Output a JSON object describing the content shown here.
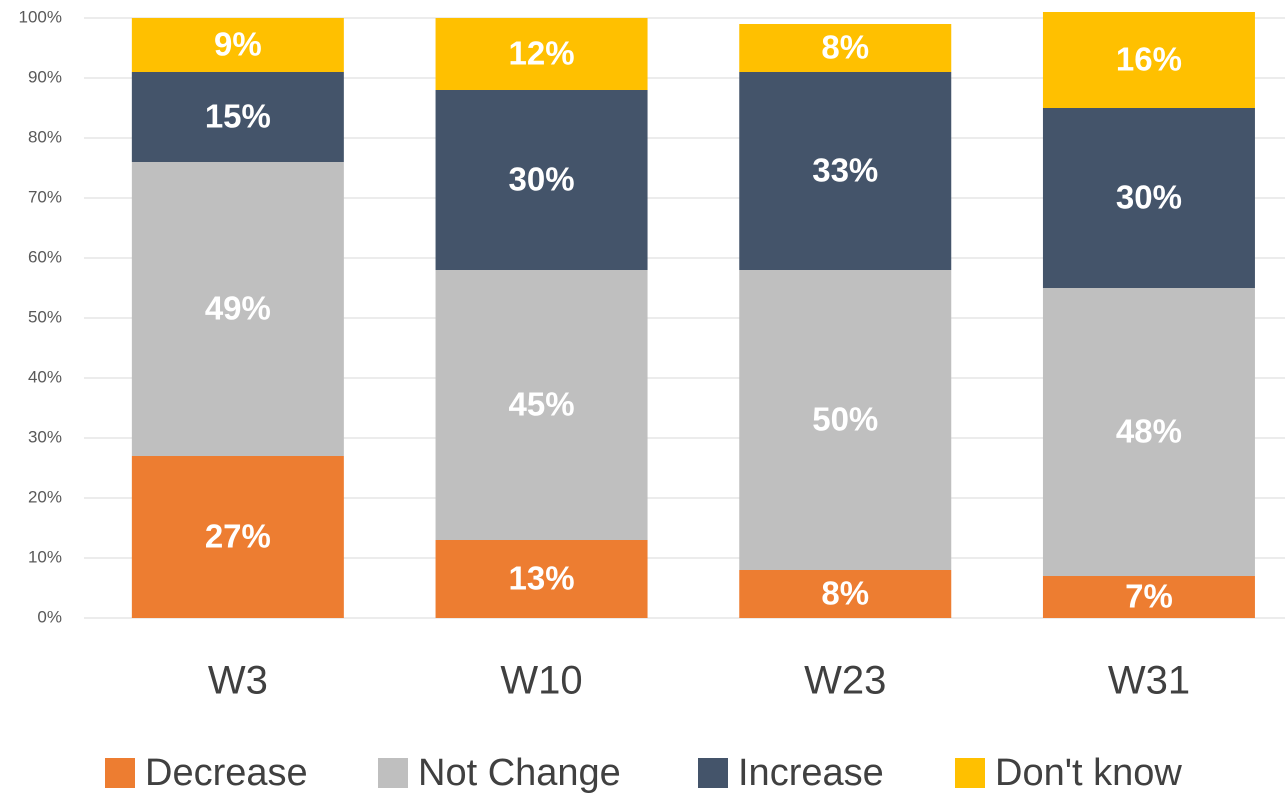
{
  "chart_data": {
    "type": "stacked_bar",
    "categories": [
      "W3",
      "W10",
      "W23",
      "W31"
    ],
    "series": [
      {
        "name": "Decrease",
        "color": "#ed7d31",
        "values": [
          27,
          13,
          8,
          7
        ],
        "value_labels": [
          "27%",
          "13%",
          "8%",
          "7%"
        ]
      },
      {
        "name": "Not Change",
        "color": "#bfbfbf",
        "values": [
          49,
          45,
          50,
          48
        ],
        "value_labels": [
          "49%",
          "45%",
          "50%",
          "48%"
        ]
      },
      {
        "name": "Increase",
        "color": "#44546a",
        "values": [
          15,
          30,
          33,
          30
        ],
        "value_labels": [
          "15%",
          "30%",
          "33%",
          "30%"
        ]
      },
      {
        "name": "Don't know",
        "color": "#ffc000",
        "values": [
          9,
          12,
          8,
          16
        ],
        "value_labels": [
          "9%",
          "12%",
          "8%",
          "16%"
        ]
      }
    ],
    "ylim": [
      0,
      100
    ],
    "yticks": [
      {
        "value": 0,
        "label": "0%"
      },
      {
        "value": 10,
        "label": "10%"
      },
      {
        "value": 20,
        "label": "20%"
      },
      {
        "value": 30,
        "label": "30%"
      },
      {
        "value": 40,
        "label": "40%"
      },
      {
        "value": 50,
        "label": "50%"
      },
      {
        "value": 60,
        "label": "60%"
      },
      {
        "value": 70,
        "label": "70%"
      },
      {
        "value": 80,
        "label": "80%"
      },
      {
        "value": 90,
        "label": "90%"
      },
      {
        "value": 100,
        "label": "100%"
      }
    ],
    "grid": true,
    "legend": "bottom"
  }
}
